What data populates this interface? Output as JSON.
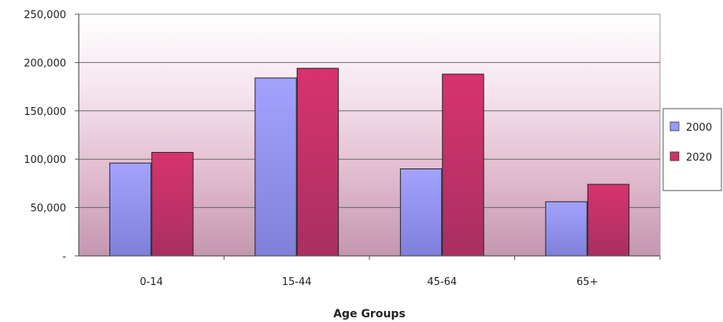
{
  "chart_data": {
    "type": "bar",
    "categories": [
      "0-14",
      "15-44",
      "45-64",
      "65+"
    ],
    "series": [
      {
        "name": "2000",
        "values": [
          96000,
          184000,
          90000,
          56000
        ],
        "color": "#9999ff"
      },
      {
        "name": "2020",
        "values": [
          107000,
          194000,
          188000,
          74000
        ],
        "color": "#cc3366"
      }
    ],
    "title": "",
    "xlabel": "Age Groups",
    "ylabel": "",
    "ylim": [
      0,
      250000
    ],
    "y_ticks": [
      {
        "value": 0,
        "label": "-"
      },
      {
        "value": 50000,
        "label": "50,000"
      },
      {
        "value": 100000,
        "label": "100,000"
      },
      {
        "value": 150000,
        "label": "150,000"
      },
      {
        "value": 200000,
        "label": "200,000"
      },
      {
        "value": 250000,
        "label": "250,000"
      }
    ],
    "grid": true,
    "legend_position": "right"
  }
}
